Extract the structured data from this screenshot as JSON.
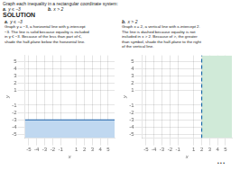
{
  "title": "Graph each inequality in a rectangular coordinate system:",
  "annotations": [
    "SOLUTION",
    "• • •"
  ],
  "chart_data": [
    {
      "type": "line",
      "title": "y ≤ −3",
      "annotations": [
        "a.",
        "Graph y = −3, a horizontal line with y-intercept\n−3. The line is solid because equality is included\nin y ≤ −3. Because of the less than part of ≤,\nshade the half-plane below the horizontal line."
      ],
      "xlabel": "x",
      "ylabel": "y",
      "xlim": [
        -5.5,
        5.8
      ],
      "ylim": [
        -5.5,
        5.8
      ],
      "xticks": [
        -5,
        -4,
        -3,
        -2,
        -1,
        1,
        2,
        3,
        4,
        5
      ],
      "yticks": [
        -5,
        -4,
        -3,
        -2,
        -1,
        1,
        2,
        3,
        4,
        5
      ],
      "grid": true,
      "series": [
        {
          "type": "area",
          "color": "#c0d8f0",
          "x": [
            -5.5,
            5.8
          ],
          "values": [
            -3,
            -3
          ]
        },
        {
          "type": "line",
          "color": "#1a5fa8",
          "line_style": "solid",
          "x": [
            -5.5,
            5.8
          ],
          "values": [
            -3,
            -3
          ]
        }
      ]
    },
    {
      "type": "line",
      "title": "x > 2",
      "annotations": [
        "b.",
        "Graph x = 2, a vertical line with x-intercept 2.\nThe line is dashed because equality is not\nincluded in x > 2. Because of >, the greater\nthan symbol, shade the half-plane to the right\nof the vertical line."
      ],
      "xlabel": "x",
      "ylabel": "y",
      "xlim": [
        -5.5,
        5.8
      ],
      "ylim": [
        -5.5,
        5.8
      ],
      "xticks": [
        -5,
        -4,
        -3,
        -2,
        -1,
        1,
        2,
        3,
        4,
        5
      ],
      "yticks": [
        -5,
        -4,
        -3,
        -2,
        -1,
        1,
        2,
        3,
        4,
        5
      ],
      "grid": true,
      "series": [
        {
          "type": "area",
          "color": "#d0ead8",
          "x": [
            2,
            5.8
          ],
          "values": [
            5.8,
            5.8
          ]
        },
        {
          "type": "line",
          "color": "#1a6aaa",
          "line_style": "dashed",
          "x": [
            2,
            2
          ],
          "values": [
            -5.5,
            5.8
          ]
        }
      ]
    }
  ]
}
